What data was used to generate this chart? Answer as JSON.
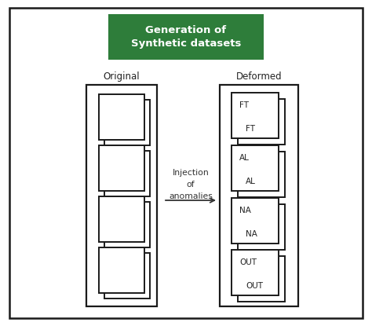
{
  "title_line1": "Generation of",
  "title_line2": "Synthetic datasets",
  "title_bg": "#2e7d3a",
  "title_fg": "#ffffff",
  "label_original": "Original",
  "label_deformed": "Deformed",
  "injection_text": "Injection\nof\nanomalies",
  "deformed_labels": [
    [
      "FT",
      "FT"
    ],
    [
      "AL",
      "AL"
    ],
    [
      "NA",
      "NA"
    ],
    [
      "OUT",
      "OUT"
    ]
  ],
  "background": "#ffffff",
  "box_edge_color": "#1a1a1a",
  "shadow_color": "#ffffff",
  "fig_width": 4.74,
  "fig_height": 4.15,
  "dpi": 100
}
